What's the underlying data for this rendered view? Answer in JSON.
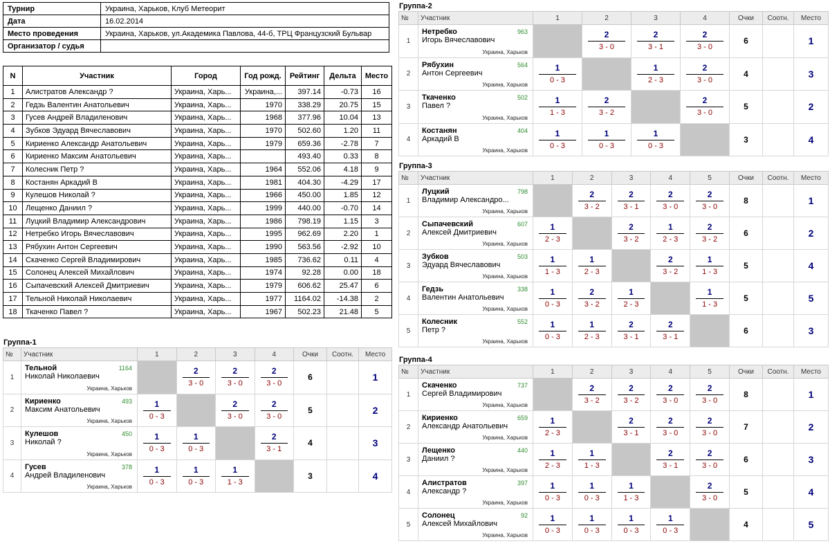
{
  "info": [
    {
      "k": "Турнир",
      "v": "Украина, Харьков, Клуб Метеорит"
    },
    {
      "k": "Дата",
      "v": "16.02.2014"
    },
    {
      "k": "Место проведения",
      "v": "Украина, Харьков, ул.Академика Павлова, 44-б, ТРЦ Французский Бульвар"
    },
    {
      "k": "Организатор / судья",
      "v": ""
    }
  ],
  "participants_headers": [
    "N",
    "Участник",
    "Город",
    "Год рожд.",
    "Рейтинг",
    "Дельта",
    "Место"
  ],
  "participants": [
    [
      "1",
      "Алистратов Александр ?",
      "Украина, Харь...",
      "Украина,...",
      "397.14",
      "-0.73",
      "16"
    ],
    [
      "2",
      "Гедзь Валентин Анатольевич",
      "Украина, Харь...",
      "1970",
      "338.29",
      "20.75",
      "15"
    ],
    [
      "3",
      "Гусев Андрей Владиленович",
      "Украина, Харь...",
      "1968",
      "377.96",
      "10.04",
      "13"
    ],
    [
      "4",
      "Зубков Эдуард Вячеславович",
      "Украина, Харь...",
      "1970",
      "502.60",
      "1.20",
      "11"
    ],
    [
      "5",
      "Кириенко Александр Анатольевич",
      "Украина, Харь...",
      "1979",
      "659.36",
      "-2.78",
      "7"
    ],
    [
      "6",
      "Кириенко Максим Анатольевич",
      "Украина, Харь...",
      "",
      "493.40",
      "0.33",
      "8"
    ],
    [
      "7",
      "Колесник Петр ?",
      "Украина, Харь...",
      "1964",
      "552.06",
      "4.18",
      "9"
    ],
    [
      "8",
      "Костанян Аркадий В",
      "Украина, Харь...",
      "1981",
      "404.30",
      "-4.29",
      "17"
    ],
    [
      "9",
      "Кулешов Николай ?",
      "Украина, Харь...",
      "1966",
      "450.00",
      "1.85",
      "12"
    ],
    [
      "10",
      "Лещенко Даниил ?",
      "Украина, Харь...",
      "1999",
      "440.00",
      "-0.70",
      "14"
    ],
    [
      "11",
      "Луцкий Владимир Александрович",
      "Украина, Харь...",
      "1986",
      "798.19",
      "1.15",
      "3"
    ],
    [
      "12",
      "Нетребко Игорь Вячеславович",
      "Украина, Харь...",
      "1995",
      "962.69",
      "2.20",
      "1"
    ],
    [
      "13",
      "Рябухин Антон Сергеевич",
      "Украина, Харь...",
      "1990",
      "563.56",
      "-2.92",
      "10"
    ],
    [
      "14",
      "Скаченко Сергей Владимирович",
      "Украина, Харь...",
      "1985",
      "736.62",
      "0.11",
      "4"
    ],
    [
      "15",
      "Солонец Алексей Михайлович",
      "Украина, Харь...",
      "1974",
      "92.28",
      "0.00",
      "18"
    ],
    [
      "16",
      "Сыпачевский Алексей Дмитриевич",
      "Украина, Харь...",
      "1979",
      "606.62",
      "25.47",
      "6"
    ],
    [
      "17",
      "Тельной Николай Николаевич",
      "Украина, Харь...",
      "1977",
      "1164.02",
      "-14.38",
      "2"
    ],
    [
      "18",
      "Ткаченко Павел ?",
      "Украина, Харь...",
      "1967",
      "502.23",
      "21.48",
      "5"
    ]
  ],
  "group_headers": {
    "num": "№",
    "player": "Участник",
    "score": "Очки",
    "ratio": "Соотн.",
    "place": "Место"
  },
  "groups": [
    {
      "title": "Группа-1",
      "rows": [
        {
          "n": "1",
          "surname": "Тельной",
          "name": "Николай Николаевич",
          "rating": "1164",
          "city": "Украина, Харьков",
          "results": [
            null,
            [
              "2",
              "3 - 0"
            ],
            [
              "2",
              "3 - 0"
            ],
            [
              "2",
              "3 - 0"
            ]
          ],
          "score": "6",
          "ratio": "",
          "place": "1"
        },
        {
          "n": "2",
          "surname": "Кириенко",
          "name": "Максим Анатольевич",
          "rating": "493",
          "city": "Украина, Харьков",
          "results": [
            [
              "1",
              "0 - 3"
            ],
            null,
            [
              "2",
              "3 - 0"
            ],
            [
              "2",
              "3 - 0"
            ]
          ],
          "score": "5",
          "ratio": "",
          "place": "2"
        },
        {
          "n": "3",
          "surname": "Кулешов",
          "name": "Николай ?",
          "rating": "450",
          "city": "Украина, Харьков",
          "results": [
            [
              "1",
              "0 - 3"
            ],
            [
              "1",
              "0 - 3"
            ],
            null,
            [
              "2",
              "3 - 1"
            ]
          ],
          "score": "4",
          "ratio": "",
          "place": "3"
        },
        {
          "n": "4",
          "surname": "Гусев",
          "name": "Андрей Владиленович",
          "rating": "378",
          "city": "Украина, Харьков",
          "results": [
            [
              "1",
              "0 - 3"
            ],
            [
              "1",
              "0 - 3"
            ],
            [
              "1",
              "1 - 3"
            ],
            null
          ],
          "score": "3",
          "ratio": "",
          "place": "4"
        }
      ]
    },
    {
      "title": "Группа-2",
      "rows": [
        {
          "n": "1",
          "surname": "Нетребко",
          "name": "Игорь Вячеславович",
          "rating": "963",
          "city": "Украина, Харьков",
          "results": [
            null,
            [
              "2",
              "3 - 0"
            ],
            [
              "2",
              "3 - 1"
            ],
            [
              "2",
              "3 - 0"
            ]
          ],
          "score": "6",
          "ratio": "",
          "place": "1"
        },
        {
          "n": "2",
          "surname": "Рябухин",
          "name": "Антон Сергеевич",
          "rating": "564",
          "city": "Украина, Харьков",
          "results": [
            [
              "1",
              "0 - 3"
            ],
            null,
            [
              "1",
              "2 - 3"
            ],
            [
              "2",
              "3 - 0"
            ]
          ],
          "score": "4",
          "ratio": "",
          "place": "3"
        },
        {
          "n": "3",
          "surname": "Ткаченко",
          "name": "Павел ?",
          "rating": "502",
          "city": "Украина, Харьков",
          "results": [
            [
              "1",
              "1 - 3"
            ],
            [
              "2",
              "3 - 2"
            ],
            null,
            [
              "2",
              "3 - 0"
            ]
          ],
          "score": "5",
          "ratio": "",
          "place": "2"
        },
        {
          "n": "4",
          "surname": "Костанян",
          "name": "Аркадий В",
          "rating": "404",
          "city": "Украина, Харьков",
          "results": [
            [
              "1",
              "0 - 3"
            ],
            [
              "1",
              "0 - 3"
            ],
            [
              "1",
              "0 - 3"
            ],
            null
          ],
          "score": "3",
          "ratio": "",
          "place": "4"
        }
      ]
    },
    {
      "title": "Группа-3",
      "rows": [
        {
          "n": "1",
          "surname": "Луцкий",
          "name": "Владимир Александро...",
          "rating": "798",
          "city": "Украина, Харьков",
          "results": [
            null,
            [
              "2",
              "3 - 2"
            ],
            [
              "2",
              "3 - 1"
            ],
            [
              "2",
              "3 - 0"
            ],
            [
              "2",
              "3 - 0"
            ]
          ],
          "score": "8",
          "ratio": "",
          "place": "1"
        },
        {
          "n": "2",
          "surname": "Сыпачевский",
          "name": "Алексей Дмитриевич",
          "rating": "607",
          "city": "Украина, Харьков",
          "results": [
            [
              "1",
              "2 - 3"
            ],
            null,
            [
              "2",
              "3 - 2"
            ],
            [
              "1",
              "2 - 3"
            ],
            [
              "2",
              "3 - 2"
            ]
          ],
          "score": "6",
          "ratio": "",
          "place": "2"
        },
        {
          "n": "3",
          "surname": "Зубков",
          "name": "Эдуард Вячеславович",
          "rating": "503",
          "city": "Украина, Харьков",
          "results": [
            [
              "1",
              "1 - 3"
            ],
            [
              "1",
              "2 - 3"
            ],
            null,
            [
              "2",
              "3 - 2"
            ],
            [
              "1",
              "1 - 3"
            ]
          ],
          "score": "5",
          "ratio": "",
          "place": "4"
        },
        {
          "n": "4",
          "surname": "Гедзь",
          "name": "Валентин Анатольевич",
          "rating": "338",
          "city": "Украина, Харьков",
          "results": [
            [
              "1",
              "0 - 3"
            ],
            [
              "2",
              "3 - 2"
            ],
            [
              "1",
              "2 - 3"
            ],
            null,
            [
              "1",
              "1 - 3"
            ]
          ],
          "score": "5",
          "ratio": "",
          "place": "5"
        },
        {
          "n": "5",
          "surname": "Колесник",
          "name": "Петр ?",
          "rating": "552",
          "city": "Украина, Харьков",
          "results": [
            [
              "1",
              "0 - 3"
            ],
            [
              "1",
              "2 - 3"
            ],
            [
              "2",
              "3 - 1"
            ],
            [
              "2",
              "3 - 1"
            ],
            null
          ],
          "score": "6",
          "ratio": "",
          "place": "3"
        }
      ]
    },
    {
      "title": "Группа-4",
      "rows": [
        {
          "n": "1",
          "surname": "Скаченко",
          "name": "Сергей Владимирович",
          "rating": "737",
          "city": "Украина, Харьков",
          "results": [
            null,
            [
              "2",
              "3 - 2"
            ],
            [
              "2",
              "3 - 2"
            ],
            [
              "2",
              "3 - 0"
            ],
            [
              "2",
              "3 - 0"
            ]
          ],
          "score": "8",
          "ratio": "",
          "place": "1"
        },
        {
          "n": "2",
          "surname": "Кириенко",
          "name": "Александр Анатольевич",
          "rating": "659",
          "city": "Украина, Харьков",
          "results": [
            [
              "1",
              "2 - 3"
            ],
            null,
            [
              "2",
              "3 - 1"
            ],
            [
              "2",
              "3 - 0"
            ],
            [
              "2",
              "3 - 0"
            ]
          ],
          "score": "7",
          "ratio": "",
          "place": "2"
        },
        {
          "n": "3",
          "surname": "Лещенко",
          "name": "Даниил ?",
          "rating": "440",
          "city": "Украина, Харьков",
          "results": [
            [
              "1",
              "2 - 3"
            ],
            [
              "1",
              "1 - 3"
            ],
            null,
            [
              "2",
              "3 - 1"
            ],
            [
              "2",
              "3 - 0"
            ]
          ],
          "score": "6",
          "ratio": "",
          "place": "3"
        },
        {
          "n": "4",
          "surname": "Алистратов",
          "name": "Александр ?",
          "rating": "397",
          "city": "Украина, Харьков",
          "results": [
            [
              "1",
              "0 - 3"
            ],
            [
              "1",
              "0 - 3"
            ],
            [
              "1",
              "1 - 3"
            ],
            null,
            [
              "2",
              "3 - 0"
            ]
          ],
          "score": "5",
          "ratio": "",
          "place": "4"
        },
        {
          "n": "5",
          "surname": "Солонец",
          "name": "Алексей Михайлович",
          "rating": "92",
          "city": "Украина, Харьков",
          "results": [
            [
              "1",
              "0 - 3"
            ],
            [
              "1",
              "0 - 3"
            ],
            [
              "1",
              "0 - 3"
            ],
            [
              "1",
              "0 - 3"
            ],
            null
          ],
          "score": "4",
          "ratio": "",
          "place": "5"
        }
      ]
    }
  ]
}
